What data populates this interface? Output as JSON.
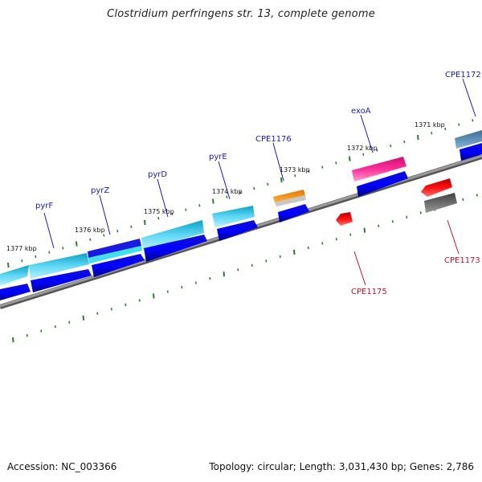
{
  "title": "Clostridium perfringens str. 13, complete genome",
  "footer": {
    "accession": "Accession: NC_003366",
    "summary": "Topology: circular; Length: 3,031,430 bp; Genes: 2,786"
  },
  "colors": {
    "forward_label": "#1a1ab8",
    "reverse_label": "#c8102e",
    "ticks": "#2e7d2e",
    "backbone": "#808080"
  },
  "kbp_labels": [
    "1377 kbp",
    "1376 kbp",
    "1375 kbp",
    "1374 kbp",
    "1373 kbp",
    "1372 kbp",
    "1371 kbp"
  ],
  "gene_labels": [
    {
      "name": "pyrF",
      "strand": "forward"
    },
    {
      "name": "pyrZ",
      "strand": "forward"
    },
    {
      "name": "pyrD",
      "strand": "forward"
    },
    {
      "name": "pyrE",
      "strand": "forward"
    },
    {
      "name": "CPE1176",
      "strand": "forward"
    },
    {
      "name": "exoA",
      "strand": "forward"
    },
    {
      "name": "CPE1172",
      "strand": "forward"
    },
    {
      "name": "CPE1175",
      "strand": "reverse"
    },
    {
      "name": "CPE1173",
      "strand": "reverse"
    }
  ]
}
